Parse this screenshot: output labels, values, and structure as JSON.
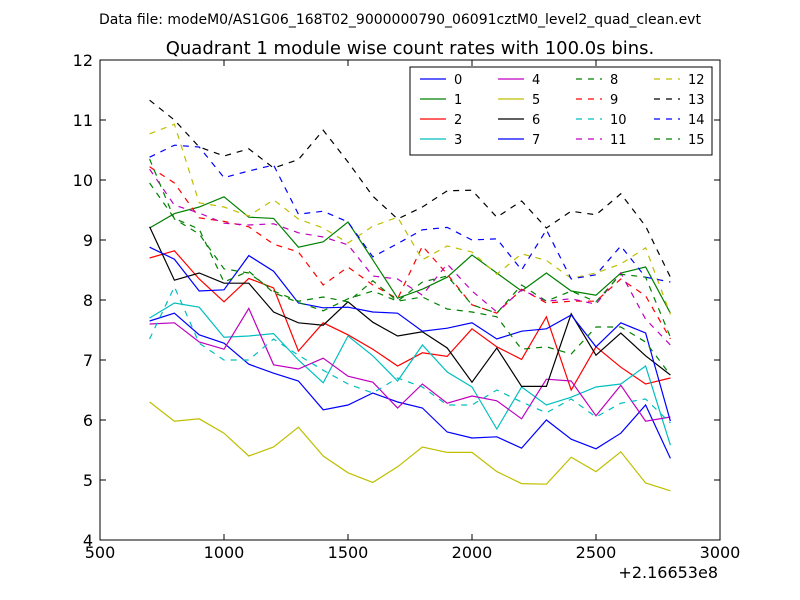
{
  "chart_data": {
    "type": "line",
    "suptitle": "Data file: modeM0/AS1G06_168T02_9000000790_06091cztM0_level2_quad_clean.evt",
    "title": "Quadrant 1 module wise count rates with 100.0s bins.",
    "xlabel": "",
    "ylabel": "",
    "x_offset_label": "+2.16653e8",
    "xlim": [
      500,
      3000
    ],
    "ylim": [
      4,
      12
    ],
    "xticks": [
      500,
      1000,
      1500,
      2000,
      2500,
      3000
    ],
    "yticks": [
      4,
      5,
      6,
      7,
      8,
      9,
      10,
      11,
      12
    ],
    "grid": false,
    "legend": {
      "placement": "top-right",
      "columns": 4
    },
    "x": [
      700,
      800,
      900,
      1000,
      1100,
      1200,
      1300,
      1400,
      1500,
      1600,
      1700,
      1800,
      1900,
      2000,
      2100,
      2200,
      2300,
      2400,
      2500,
      2600,
      2700,
      2800
    ],
    "series": [
      {
        "name": "0",
        "color": "#0000ff",
        "dash": "solid",
        "values": [
          7.65,
          7.78,
          7.42,
          7.28,
          6.93,
          6.78,
          6.65,
          6.17,
          6.25,
          6.45,
          6.3,
          6.2,
          5.8,
          5.7,
          5.72,
          5.53,
          6.0,
          5.68,
          5.52,
          5.78,
          6.25,
          5.36
        ]
      },
      {
        "name": "1",
        "color": "#008000",
        "dash": "solid",
        "values": [
          9.2,
          9.44,
          9.55,
          9.72,
          9.38,
          9.36,
          8.88,
          8.97,
          9.3,
          8.67,
          8.03,
          8.18,
          8.38,
          8.75,
          8.45,
          8.15,
          8.45,
          8.15,
          8.08,
          8.45,
          8.55,
          7.78
        ]
      },
      {
        "name": "2",
        "color": "#ff0000",
        "dash": "solid",
        "values": [
          8.7,
          8.82,
          8.35,
          7.97,
          8.36,
          8.2,
          7.15,
          7.62,
          7.42,
          7.18,
          6.9,
          7.12,
          7.06,
          7.52,
          7.22,
          7.01,
          7.72,
          6.5,
          7.22,
          6.88,
          6.6,
          6.7
        ]
      },
      {
        "name": "3",
        "color": "#00bfbf",
        "dash": "solid",
        "values": [
          7.7,
          7.95,
          7.88,
          7.38,
          7.4,
          7.44,
          7.0,
          6.62,
          7.4,
          7.07,
          6.65,
          7.25,
          6.8,
          6.55,
          5.85,
          6.55,
          6.25,
          6.38,
          6.55,
          6.6,
          6.9,
          5.58
        ]
      },
      {
        "name": "4",
        "color": "#bf00bf",
        "dash": "solid",
        "values": [
          7.6,
          7.62,
          7.3,
          7.18,
          7.86,
          6.92,
          6.85,
          7.03,
          6.73,
          6.63,
          6.2,
          6.6,
          6.28,
          6.4,
          6.32,
          6.02,
          6.68,
          6.65,
          6.07,
          6.58,
          5.98,
          6.05
        ]
      },
      {
        "name": "5",
        "color": "#bfbf00",
        "dash": "solid",
        "values": [
          6.3,
          5.98,
          6.02,
          5.78,
          5.4,
          5.55,
          5.88,
          5.4,
          5.12,
          4.96,
          5.22,
          5.55,
          5.46,
          5.46,
          5.14,
          4.94,
          4.93,
          5.38,
          5.14,
          5.47,
          4.95,
          4.82
        ]
      },
      {
        "name": "6",
        "color": "#000000",
        "dash": "solid",
        "values": [
          9.22,
          8.33,
          8.45,
          8.28,
          8.28,
          7.8,
          7.62,
          7.58,
          7.97,
          7.63,
          7.4,
          7.47,
          7.2,
          6.63,
          7.2,
          6.56,
          6.56,
          7.77,
          7.08,
          7.45,
          7.07,
          6.75
        ]
      },
      {
        "name": "7",
        "color": "#0000ff",
        "dash": "solid",
        "values": [
          8.88,
          8.68,
          8.15,
          8.17,
          8.74,
          8.48,
          7.95,
          7.87,
          7.88,
          7.8,
          7.78,
          7.48,
          7.53,
          7.62,
          7.35,
          7.48,
          7.52,
          7.75,
          7.22,
          7.62,
          7.45,
          5.98
        ]
      },
      {
        "name": "8",
        "color": "#008000",
        "dash": "dashed",
        "values": [
          9.95,
          9.36,
          9.18,
          8.3,
          8.48,
          8.12,
          7.96,
          7.82,
          8.02,
          8.15,
          7.98,
          8.05,
          7.85,
          7.8,
          7.72,
          7.18,
          7.22,
          7.1,
          7.55,
          7.55,
          7.3,
          6.75
        ]
      },
      {
        "name": "9",
        "color": "#ff0000",
        "dash": "dashed",
        "values": [
          10.22,
          9.95,
          9.37,
          9.31,
          9.22,
          8.93,
          8.8,
          8.25,
          8.55,
          8.25,
          8.02,
          8.9,
          8.43,
          7.92,
          7.78,
          8.18,
          7.95,
          7.98,
          7.98,
          8.35,
          8.07,
          7.35
        ]
      },
      {
        "name": "10",
        "color": "#00bfbf",
        "dash": "dashed",
        "values": [
          7.35,
          8.22,
          7.28,
          7.0,
          7.0,
          7.35,
          7.08,
          6.83,
          6.6,
          6.45,
          6.7,
          6.55,
          6.25,
          6.25,
          6.5,
          6.3,
          6.12,
          6.35,
          6.05,
          6.28,
          6.35,
          5.95
        ]
      },
      {
        "name": "11",
        "color": "#bf00bf",
        "dash": "dashed",
        "values": [
          10.18,
          9.58,
          9.45,
          9.28,
          9.25,
          9.27,
          9.12,
          9.05,
          8.92,
          8.4,
          8.35,
          8.08,
          8.6,
          8.15,
          7.8,
          8.17,
          7.98,
          8.02,
          7.93,
          8.45,
          7.68,
          7.25
        ]
      },
      {
        "name": "12",
        "color": "#bfbf00",
        "dash": "dashed",
        "values": [
          10.77,
          10.93,
          9.62,
          9.55,
          9.4,
          9.67,
          9.35,
          9.2,
          8.95,
          9.23,
          9.38,
          8.67,
          8.9,
          8.8,
          8.43,
          8.77,
          8.66,
          8.36,
          8.45,
          8.6,
          8.87,
          7.76
        ]
      },
      {
        "name": "13",
        "color": "#000000",
        "dash": "dashed",
        "values": [
          11.33,
          11.0,
          10.55,
          10.4,
          10.52,
          10.2,
          10.34,
          10.83,
          10.3,
          9.73,
          9.35,
          9.55,
          9.82,
          9.83,
          9.38,
          9.65,
          9.2,
          9.48,
          9.42,
          9.77,
          9.23,
          8.38
        ]
      },
      {
        "name": "14",
        "color": "#0000ff",
        "dash": "dashed",
        "values": [
          10.38,
          10.58,
          10.55,
          10.04,
          10.15,
          10.25,
          9.43,
          9.48,
          9.3,
          8.72,
          8.94,
          9.17,
          9.21,
          9.0,
          9.02,
          8.5,
          9.17,
          8.35,
          8.42,
          8.9,
          8.38,
          8.3
        ]
      },
      {
        "name": "15",
        "color": "#008000",
        "dash": "dashed",
        "values": [
          10.35,
          9.35,
          9.1,
          8.52,
          8.45,
          8.15,
          7.98,
          8.05,
          7.97,
          8.32,
          7.98,
          8.3,
          8.4,
          7.92,
          7.78,
          8.25,
          7.98,
          8.15,
          7.97,
          8.43,
          8.38,
          7.38
        ]
      }
    ]
  }
}
